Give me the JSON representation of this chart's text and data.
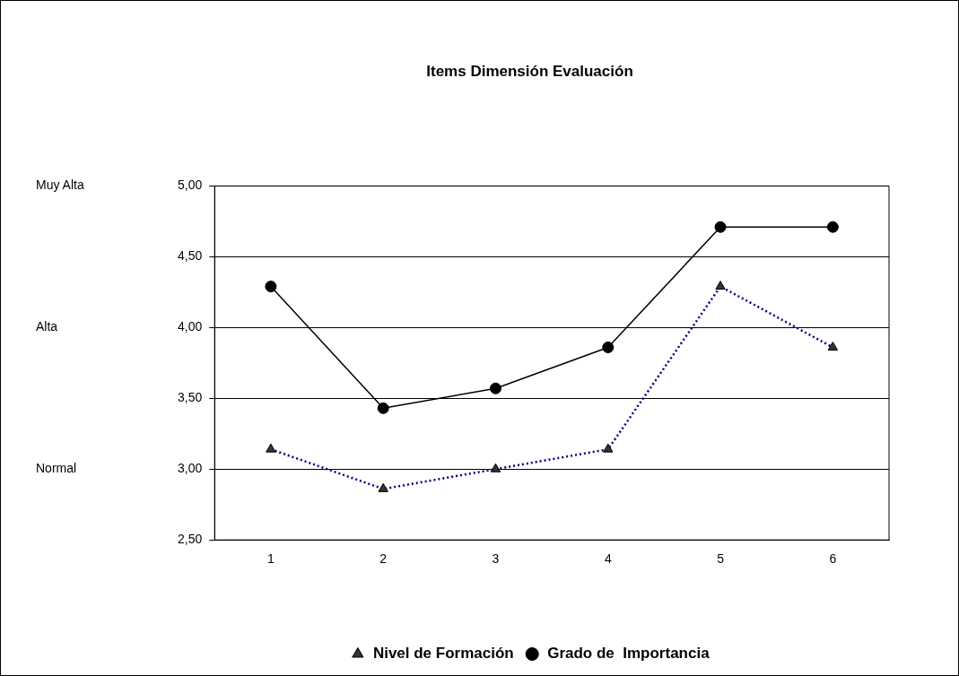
{
  "chart_data": {
    "type": "line",
    "title": "Items Dimensión Evaluación",
    "categories": [
      "1",
      "2",
      "3",
      "4",
      "5",
      "6"
    ],
    "series": [
      {
        "name": "Nivel de Formación",
        "color": "#000080",
        "marker": "triangle",
        "line_style": "dotted",
        "values": [
          3.14,
          2.86,
          3.0,
          3.14,
          4.29,
          3.86
        ]
      },
      {
        "name": "Grado de  Importancia",
        "color": "#000000",
        "marker": "circle",
        "line_style": "solid",
        "values": [
          4.29,
          3.43,
          3.57,
          3.86,
          4.71,
          4.71
        ]
      }
    ],
    "ylim": [
      2.5,
      5
    ],
    "yticks": [
      {
        "value": 2.5,
        "label": "2,50"
      },
      {
        "value": 3,
        "label": "3,00"
      },
      {
        "value": 3.5,
        "label": "3,50"
      },
      {
        "value": 4,
        "label": "4,00"
      },
      {
        "value": 4.5,
        "label": "4,50"
      },
      {
        "value": 5,
        "label": "5,00"
      }
    ],
    "grid": "y",
    "legend": "bottom",
    "annotations": [
      "Muy Alta",
      "Alta",
      "Normal"
    ]
  }
}
